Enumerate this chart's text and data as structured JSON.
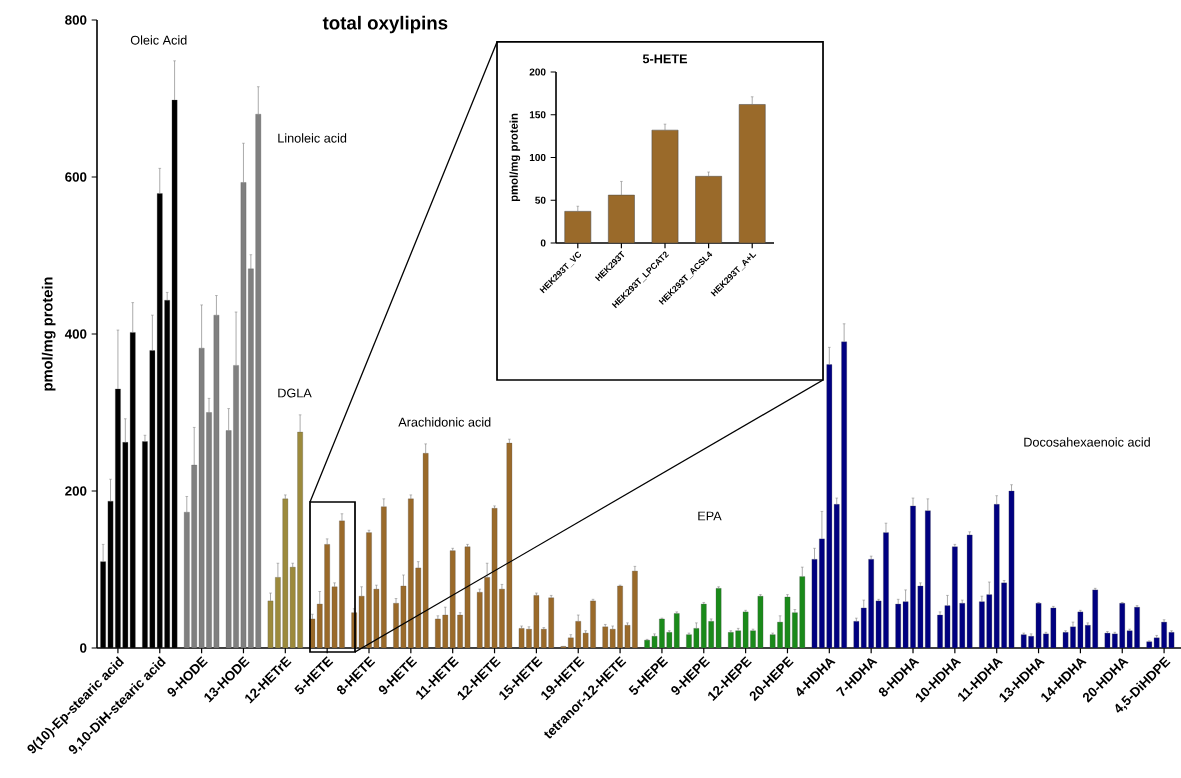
{
  "chart_data": [
    {
      "type": "bar",
      "title": "total oxylipins",
      "ylabel": "pmol/mg protein",
      "categories": [
        "9(10)-Ep-stearic acid",
        "9,10-DiH-stearic acid",
        "9-HODE",
        "13-HODE",
        "12-HETrE",
        "5-HETE",
        "8-HETE",
        "9-HETE",
        "11-HETE",
        "12-HETE",
        "15-HETE",
        "19-HETE",
        "tetranor-12-HETE",
        "5-HEPE",
        "9-HEPE",
        "12-HEPE",
        "20-HEPE",
        "4-HDHA",
        "7-HDHA",
        "8-HDHA",
        "10-HDHA",
        "11-HDHA",
        "13-HDHA",
        "14-HDHA",
        "20-HDHA",
        "4,5-DiHDPE"
      ],
      "series": [
        {
          "colors": [
            "#000000",
            "#000000",
            "#808080",
            "#808080",
            "#9c8a3c",
            "#9a6a2a",
            "#9a6a2a",
            "#9a6a2a",
            "#9a6a2a",
            "#9a6a2a",
            "#9a6a2a",
            "#9a6a2a",
            "#9a6a2a",
            "#1a8a1a",
            "#1a8a1a",
            "#1a8a1a",
            "#1a8a1a",
            "#000080",
            "#000080",
            "#000080",
            "#000080",
            "#000080",
            "#000080",
            "#000080",
            "#000080",
            "#000080"
          ],
          "values": [
            110,
            263,
            173,
            277,
            60,
            37,
            45,
            57,
            37,
            71,
            25,
            2,
            27,
            10,
            17,
            20,
            17,
            113,
            34,
            56,
            42,
            59,
            17,
            20,
            19,
            8
          ],
          "errors": [
            22,
            8,
            20,
            28,
            10,
            6,
            5,
            6,
            4,
            4,
            3,
            0,
            3,
            1,
            2,
            2,
            2,
            14,
            4,
            6,
            4,
            7,
            2,
            2,
            2,
            1
          ]
        },
        {
          "colors": [
            "#000000",
            "#000000",
            "#808080",
            "#808080",
            "#9c8a3c",
            "#9a6a2a",
            "#9a6a2a",
            "#9a6a2a",
            "#9a6a2a",
            "#9a6a2a",
            "#9a6a2a",
            "#9a6a2a",
            "#9a6a2a",
            "#1a8a1a",
            "#1a8a1a",
            "#1a8a1a",
            "#1a8a1a",
            "#000080",
            "#000080",
            "#000080",
            "#000080",
            "#000080",
            "#000080",
            "#000080",
            "#000080",
            "#000080"
          ],
          "values": [
            187,
            379,
            233,
            360,
            90,
            56,
            66,
            79,
            42,
            90,
            24,
            13,
            24,
            15,
            25,
            22,
            33,
            139,
            51,
            59,
            54,
            68,
            15,
            27,
            18,
            13
          ],
          "errors": [
            28,
            45,
            48,
            68,
            18,
            16,
            12,
            14,
            10,
            18,
            3,
            4,
            4,
            3,
            7,
            3,
            8,
            35,
            10,
            15,
            13,
            16,
            3,
            6,
            2,
            3
          ]
        },
        {
          "colors": [
            "#000000",
            "#000000",
            "#808080",
            "#808080",
            "#9c8a3c",
            "#9a6a2a",
            "#9a6a2a",
            "#9a6a2a",
            "#9a6a2a",
            "#9a6a2a",
            "#9a6a2a",
            "#9a6a2a",
            "#9a6a2a",
            "#1a8a1a",
            "#1a8a1a",
            "#1a8a1a",
            "#1a8a1a",
            "#000080",
            "#000080",
            "#000080",
            "#000080",
            "#000080",
            "#000080",
            "#000080",
            "#000080",
            "#000080"
          ],
          "values": [
            330,
            579,
            382,
            593,
            190,
            132,
            147,
            190,
            124,
            178,
            67,
            34,
            79,
            37,
            56,
            46,
            65,
            361,
            113,
            181,
            129,
            183,
            57,
            46,
            57,
            33
          ],
          "errors": [
            75,
            32,
            55,
            50,
            5,
            7,
            3,
            5,
            3,
            3,
            3,
            8,
            1,
            1,
            2,
            2,
            3,
            22,
            4,
            10,
            3,
            11,
            1,
            2,
            1,
            3
          ]
        },
        {
          "colors": [
            "#000000",
            "#000000",
            "#808080",
            "#808080",
            "#9c8a3c",
            "#9a6a2a",
            "#9a6a2a",
            "#9a6a2a",
            "#9a6a2a",
            "#9a6a2a",
            "#9a6a2a",
            "#9a6a2a",
            "#9a6a2a",
            "#1a8a1a",
            "#1a8a1a",
            "#1a8a1a",
            "#1a8a1a",
            "#000080",
            "#000080",
            "#000080",
            "#000080",
            "#000080",
            "#000080",
            "#000080",
            "#000080",
            "#000080"
          ],
          "values": [
            262,
            443,
            300,
            483,
            103,
            78,
            75,
            102,
            42,
            75,
            24,
            19,
            29,
            20,
            34,
            22,
            45,
            183,
            60,
            79,
            57,
            83,
            18,
            29,
            22,
            20
          ],
          "errors": [
            30,
            10,
            18,
            18,
            5,
            5,
            5,
            8,
            3,
            6,
            2,
            3,
            3,
            2,
            3,
            2,
            4,
            8,
            2,
            4,
            4,
            3,
            2,
            3,
            2,
            2
          ]
        },
        {
          "colors": [
            "#000000",
            "#000000",
            "#808080",
            "#808080",
            "#9c8a3c",
            "#9a6a2a",
            "#9a6a2a",
            "#9a6a2a",
            "#9a6a2a",
            "#9a6a2a",
            "#9a6a2a",
            "#9a6a2a",
            "#9a6a2a",
            "#1a8a1a",
            "#1a8a1a",
            "#1a8a1a",
            "#1a8a1a",
            "#000080",
            "#000080",
            "#000080",
            "#000080",
            "#000080",
            "#000080",
            "#000080",
            "#000080",
            "#000080"
          ],
          "values": [
            402,
            698,
            424,
            680,
            275,
            162,
            180,
            248,
            129,
            261,
            64,
            60,
            98,
            44,
            76,
            66,
            91,
            390,
            147,
            175,
            144,
            200,
            51,
            74,
            52,
            null
          ],
          "errors": [
            38,
            50,
            25,
            35,
            22,
            9,
            10,
            12,
            3,
            5,
            3,
            2,
            6,
            2,
            2,
            2,
            12,
            23,
            12,
            15,
            4,
            8,
            2,
            2,
            2,
            null
          ]
        }
      ],
      "ylim": [
        0,
        800
      ],
      "yticks": [
        0,
        200,
        400,
        600,
        800
      ],
      "annotations": [
        "Oleic Acid",
        "Linoleic acid",
        "DGLA",
        "Arachidonic acid",
        "EPA",
        "Docosahexaenoic acid"
      ]
    },
    {
      "type": "bar",
      "title": "5-HETE",
      "ylabel": "pmol/mg protein",
      "categories": [
        "HEK293T_VC",
        "HEK293T",
        "HEK293T_LPCAT2",
        "HEK293T_ACSL4",
        "HEK293T_A+L"
      ],
      "values": [
        37,
        56,
        132,
        78,
        162
      ],
      "errors": [
        6,
        16,
        7,
        5,
        9
      ],
      "color": "#9a6a2a",
      "ylim": [
        0,
        200
      ],
      "yticks": [
        0,
        50,
        100,
        150,
        200
      ]
    }
  ]
}
